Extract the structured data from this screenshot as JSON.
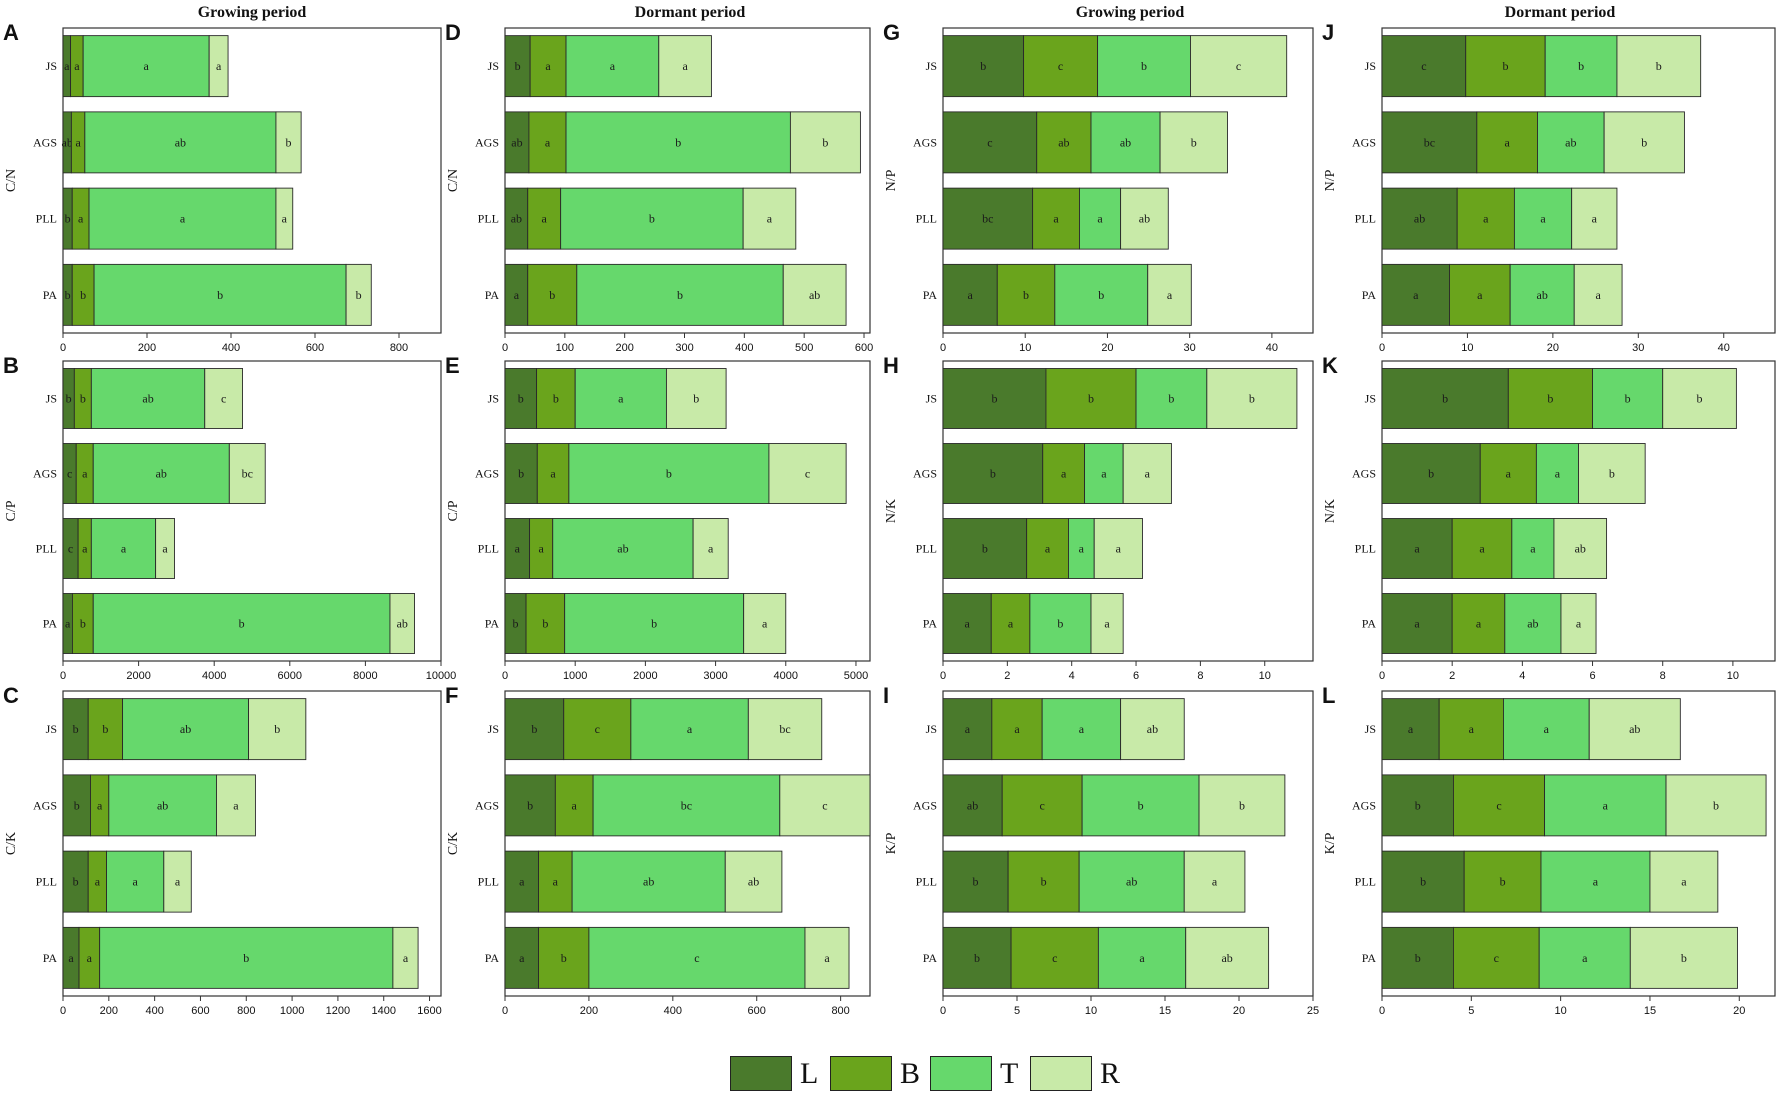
{
  "colors": {
    "L": "#4a7a2c",
    "B": "#6aa41c",
    "T": "#66d86c",
    "R": "#c8eaa8"
  },
  "legend": [
    {
      "key": "L",
      "label": "L"
    },
    {
      "key": "B",
      "label": "B"
    },
    {
      "key": "T",
      "label": "T"
    },
    {
      "key": "R",
      "label": "R"
    }
  ],
  "column_titles": [
    "Growing period",
    "Dormant period",
    "Growing period",
    "Dormant period"
  ],
  "chart_data": [
    {
      "panel": "A",
      "type": "bar",
      "stacked": true,
      "orientation": "horizontal",
      "ylabel": "C/N",
      "categories": [
        "JS",
        "AGS",
        "PLL",
        "PA"
      ],
      "xlim": [
        0,
        900
      ],
      "ticks": [
        0,
        200,
        400,
        600,
        800
      ],
      "series": [
        {
          "name": "L",
          "values": [
            18,
            20,
            22,
            22
          ],
          "labels": [
            "a",
            "ab",
            "b",
            "b"
          ]
        },
        {
          "name": "B",
          "values": [
            30,
            32,
            40,
            52
          ],
          "labels": [
            "a",
            "a",
            "a",
            "b"
          ]
        },
        {
          "name": "T",
          "values": [
            300,
            455,
            445,
            600
          ],
          "labels": [
            "a",
            "ab",
            "a",
            "b"
          ]
        },
        {
          "name": "R",
          "values": [
            45,
            60,
            40,
            60
          ],
          "labels": [
            "a",
            "b",
            "a",
            "b"
          ]
        }
      ]
    },
    {
      "panel": "B",
      "type": "bar",
      "stacked": true,
      "orientation": "horizontal",
      "ylabel": "C/P",
      "categories": [
        "JS",
        "AGS",
        "PLL",
        "PA"
      ],
      "xlim": [
        0,
        10000
      ],
      "ticks": [
        0,
        2000,
        4000,
        6000,
        8000,
        10000
      ],
      "series": [
        {
          "name": "L",
          "values": [
            300,
            350,
            400,
            250
          ],
          "labels": [
            "b",
            "c",
            "c",
            "a"
          ]
        },
        {
          "name": "B",
          "values": [
            450,
            450,
            350,
            550
          ],
          "labels": [
            "b",
            "a",
            "a",
            "b"
          ]
        },
        {
          "name": "T",
          "values": [
            3000,
            3600,
            1700,
            7850
          ],
          "labels": [
            "ab",
            "ab",
            "a",
            "b"
          ]
        },
        {
          "name": "R",
          "values": [
            1000,
            950,
            500,
            650
          ],
          "labels": [
            "c",
            "bc",
            "a",
            "ab"
          ]
        }
      ]
    },
    {
      "panel": "C",
      "type": "bar",
      "stacked": true,
      "orientation": "horizontal",
      "ylabel": "C/K",
      "categories": [
        "JS",
        "AGS",
        "PLL",
        "PA"
      ],
      "xlim": [
        0,
        1650
      ],
      "ticks": [
        0,
        200,
        400,
        600,
        800,
        1000,
        1200,
        1400,
        1600
      ],
      "series": [
        {
          "name": "L",
          "values": [
            110,
            120,
            110,
            70
          ],
          "labels": [
            "b",
            "b",
            "b",
            "a"
          ]
        },
        {
          "name": "B",
          "values": [
            150,
            80,
            80,
            90
          ],
          "labels": [
            "b",
            "a",
            "a",
            "a"
          ]
        },
        {
          "name": "T",
          "values": [
            550,
            470,
            250,
            1280
          ],
          "labels": [
            "ab",
            "ab",
            "a",
            "b"
          ]
        },
        {
          "name": "R",
          "values": [
            250,
            170,
            120,
            110
          ],
          "labels": [
            "b",
            "a",
            "a",
            "a"
          ]
        }
      ]
    },
    {
      "panel": "D",
      "type": "bar",
      "stacked": true,
      "orientation": "horizontal",
      "ylabel": "C/N",
      "categories": [
        "JS",
        "AGS",
        "PLL",
        "PA"
      ],
      "xlim": [
        0,
        610
      ],
      "ticks": [
        0,
        100,
        200,
        300,
        400,
        500,
        600
      ],
      "series": [
        {
          "name": "L",
          "values": [
            42,
            40,
            38,
            38
          ],
          "labels": [
            "b",
            "ab",
            "ab",
            "a"
          ]
        },
        {
          "name": "B",
          "values": [
            60,
            62,
            55,
            82
          ],
          "labels": [
            "a",
            "a",
            "a",
            "b"
          ]
        },
        {
          "name": "T",
          "values": [
            155,
            375,
            305,
            345
          ],
          "labels": [
            "a",
            "b",
            "b",
            "b"
          ]
        },
        {
          "name": "R",
          "values": [
            88,
            117,
            88,
            105
          ],
          "labels": [
            "a",
            "b",
            "a",
            "ab"
          ]
        }
      ]
    },
    {
      "panel": "E",
      "type": "bar",
      "stacked": true,
      "orientation": "horizontal",
      "ylabel": "C/P",
      "categories": [
        "JS",
        "AGS",
        "PLL",
        "PA"
      ],
      "xlim": [
        0,
        5200
      ],
      "ticks": [
        0,
        1000,
        2000,
        3000,
        4000,
        5000
      ],
      "series": [
        {
          "name": "L",
          "values": [
            450,
            460,
            350,
            300
          ],
          "labels": [
            "b",
            "b",
            "a",
            "b"
          ]
        },
        {
          "name": "B",
          "values": [
            550,
            450,
            330,
            550
          ],
          "labels": [
            "b",
            "a",
            "a",
            "b"
          ]
        },
        {
          "name": "T",
          "values": [
            1300,
            2850,
            2000,
            2550
          ],
          "labels": [
            "a",
            "b",
            "ab",
            "b"
          ]
        },
        {
          "name": "R",
          "values": [
            850,
            1100,
            500,
            600
          ],
          "labels": [
            "b",
            "c",
            "a",
            "a"
          ]
        }
      ]
    },
    {
      "panel": "F",
      "type": "bar",
      "stacked": true,
      "orientation": "horizontal",
      "ylabel": "C/K",
      "categories": [
        "JS",
        "AGS",
        "PLL",
        "PA"
      ],
      "xlim": [
        0,
        870
      ],
      "ticks": [
        0,
        200,
        400,
        600,
        800
      ],
      "series": [
        {
          "name": "L",
          "values": [
            140,
            120,
            80,
            80
          ],
          "labels": [
            "b",
            "b",
            "a",
            "a"
          ]
        },
        {
          "name": "B",
          "values": [
            160,
            90,
            80,
            120
          ],
          "labels": [
            "c",
            "a",
            "a",
            "b"
          ]
        },
        {
          "name": "T",
          "values": [
            280,
            445,
            365,
            515
          ],
          "labels": [
            "a",
            "bc",
            "ab",
            "c"
          ]
        },
        {
          "name": "R",
          "values": [
            175,
            215,
            135,
            105
          ],
          "labels": [
            "bc",
            "c",
            "ab",
            "a"
          ]
        }
      ]
    },
    {
      "panel": "G",
      "type": "bar",
      "stacked": true,
      "orientation": "horizontal",
      "ylabel": "N/P",
      "categories": [
        "JS",
        "AGS",
        "PLL",
        "PA"
      ],
      "xlim": [
        0,
        45
      ],
      "ticks": [
        0,
        10,
        20,
        30,
        40
      ],
      "series": [
        {
          "name": "L",
          "values": [
            9.8,
            11.4,
            10.9,
            6.6
          ],
          "labels": [
            "b",
            "c",
            "bc",
            "a"
          ]
        },
        {
          "name": "B",
          "values": [
            9.0,
            6.6,
            5.7,
            7.0
          ],
          "labels": [
            "c",
            "ab",
            "a",
            "b"
          ]
        },
        {
          "name": "T",
          "values": [
            11.3,
            8.4,
            5.0,
            11.3
          ],
          "labels": [
            "b",
            "ab",
            "a",
            "b"
          ]
        },
        {
          "name": "R",
          "values": [
            11.7,
            8.2,
            5.8,
            5.3
          ],
          "labels": [
            "c",
            "b",
            "ab",
            "a"
          ]
        }
      ]
    },
    {
      "panel": "H",
      "type": "bar",
      "stacked": true,
      "orientation": "horizontal",
      "ylabel": "N/K",
      "categories": [
        "JS",
        "AGS",
        "PLL",
        "PA"
      ],
      "xlim": [
        0,
        11.5
      ],
      "ticks": [
        0,
        2,
        4,
        6,
        8,
        10
      ],
      "series": [
        {
          "name": "L",
          "values": [
            3.2,
            3.1,
            2.6,
            1.5
          ],
          "labels": [
            "b",
            "b",
            "b",
            "a"
          ]
        },
        {
          "name": "B",
          "values": [
            2.8,
            1.3,
            1.3,
            1.2
          ],
          "labels": [
            "b",
            "a",
            "a",
            "a"
          ]
        },
        {
          "name": "T",
          "values": [
            2.2,
            1.2,
            0.8,
            1.9
          ],
          "labels": [
            "b",
            "a",
            "a",
            "b"
          ]
        },
        {
          "name": "R",
          "values": [
            2.8,
            1.5,
            1.5,
            1.0
          ],
          "labels": [
            "b",
            "a",
            "a",
            "a"
          ]
        }
      ]
    },
    {
      "panel": "I",
      "type": "bar",
      "stacked": true,
      "orientation": "horizontal",
      "ylabel": "K/P",
      "categories": [
        "JS",
        "AGS",
        "PLL",
        "PA"
      ],
      "xlim": [
        0,
        25
      ],
      "ticks": [
        0,
        5,
        10,
        15,
        20,
        25
      ],
      "series": [
        {
          "name": "L",
          "values": [
            3.3,
            4.0,
            4.4,
            4.6
          ],
          "labels": [
            "a",
            "ab",
            "b",
            "b"
          ]
        },
        {
          "name": "B",
          "values": [
            3.4,
            5.4,
            4.8,
            5.9
          ],
          "labels": [
            "a",
            "c",
            "b",
            "c"
          ]
        },
        {
          "name": "T",
          "values": [
            5.3,
            7.9,
            7.1,
            5.9
          ],
          "labels": [
            "a",
            "b",
            "ab",
            "a"
          ]
        },
        {
          "name": "R",
          "values": [
            4.3,
            5.8,
            4.1,
            5.6
          ],
          "labels": [
            "ab",
            "b",
            "a",
            "ab"
          ]
        }
      ]
    },
    {
      "panel": "J",
      "type": "bar",
      "stacked": true,
      "orientation": "horizontal",
      "ylabel": "N/P",
      "categories": [
        "JS",
        "AGS",
        "PLL",
        "PA"
      ],
      "xlim": [
        0,
        46
      ],
      "ticks": [
        0,
        10,
        20,
        30,
        40
      ],
      "series": [
        {
          "name": "L",
          "values": [
            9.8,
            11.1,
            8.8,
            7.9
          ],
          "labels": [
            "c",
            "bc",
            "ab",
            "a"
          ]
        },
        {
          "name": "B",
          "values": [
            9.3,
            7.1,
            6.7,
            7.1
          ],
          "labels": [
            "b",
            "a",
            "a",
            "a"
          ]
        },
        {
          "name": "T",
          "values": [
            8.4,
            7.8,
            6.7,
            7.5
          ],
          "labels": [
            "b",
            "ab",
            "a",
            "ab"
          ]
        },
        {
          "name": "R",
          "values": [
            9.8,
            9.4,
            5.3,
            5.6
          ],
          "labels": [
            "b",
            "b",
            "a",
            "a"
          ]
        }
      ]
    },
    {
      "panel": "K",
      "type": "bar",
      "stacked": true,
      "orientation": "horizontal",
      "ylabel": "N/K",
      "categories": [
        "JS",
        "AGS",
        "PLL",
        "PA"
      ],
      "xlim": [
        0,
        11.2
      ],
      "ticks": [
        0,
        2,
        4,
        6,
        8,
        10
      ],
      "series": [
        {
          "name": "L",
          "values": [
            3.6,
            2.8,
            2.0,
            2.0
          ],
          "labels": [
            "b",
            "b",
            "a",
            "a"
          ]
        },
        {
          "name": "B",
          "values": [
            2.4,
            1.6,
            1.7,
            1.5
          ],
          "labels": [
            "b",
            "a",
            "a",
            "a"
          ]
        },
        {
          "name": "T",
          "values": [
            2.0,
            1.2,
            1.2,
            1.6
          ],
          "labels": [
            "b",
            "a",
            "a",
            "ab"
          ]
        },
        {
          "name": "R",
          "values": [
            2.1,
            1.9,
            1.5,
            1.0
          ],
          "labels": [
            "b",
            "b",
            "ab",
            "a"
          ]
        }
      ]
    },
    {
      "panel": "L",
      "type": "bar",
      "stacked": true,
      "orientation": "horizontal",
      "ylabel": "K/P",
      "categories": [
        "JS",
        "AGS",
        "PLL",
        "PA"
      ],
      "xlim": [
        0,
        22
      ],
      "ticks": [
        0,
        5,
        10,
        15,
        20
      ],
      "series": [
        {
          "name": "L",
          "values": [
            3.2,
            4.0,
            4.6,
            4.0
          ],
          "labels": [
            "a",
            "b",
            "b",
            "b"
          ]
        },
        {
          "name": "B",
          "values": [
            3.6,
            5.1,
            4.3,
            4.8
          ],
          "labels": [
            "a",
            "c",
            "b",
            "c"
          ]
        },
        {
          "name": "T",
          "values": [
            4.8,
            6.8,
            6.1,
            5.1
          ],
          "labels": [
            "a",
            "a",
            "a",
            "a"
          ]
        },
        {
          "name": "R",
          "values": [
            5.1,
            5.6,
            3.8,
            6.0
          ],
          "labels": [
            "ab",
            "b",
            "a",
            "b"
          ]
        }
      ]
    }
  ]
}
